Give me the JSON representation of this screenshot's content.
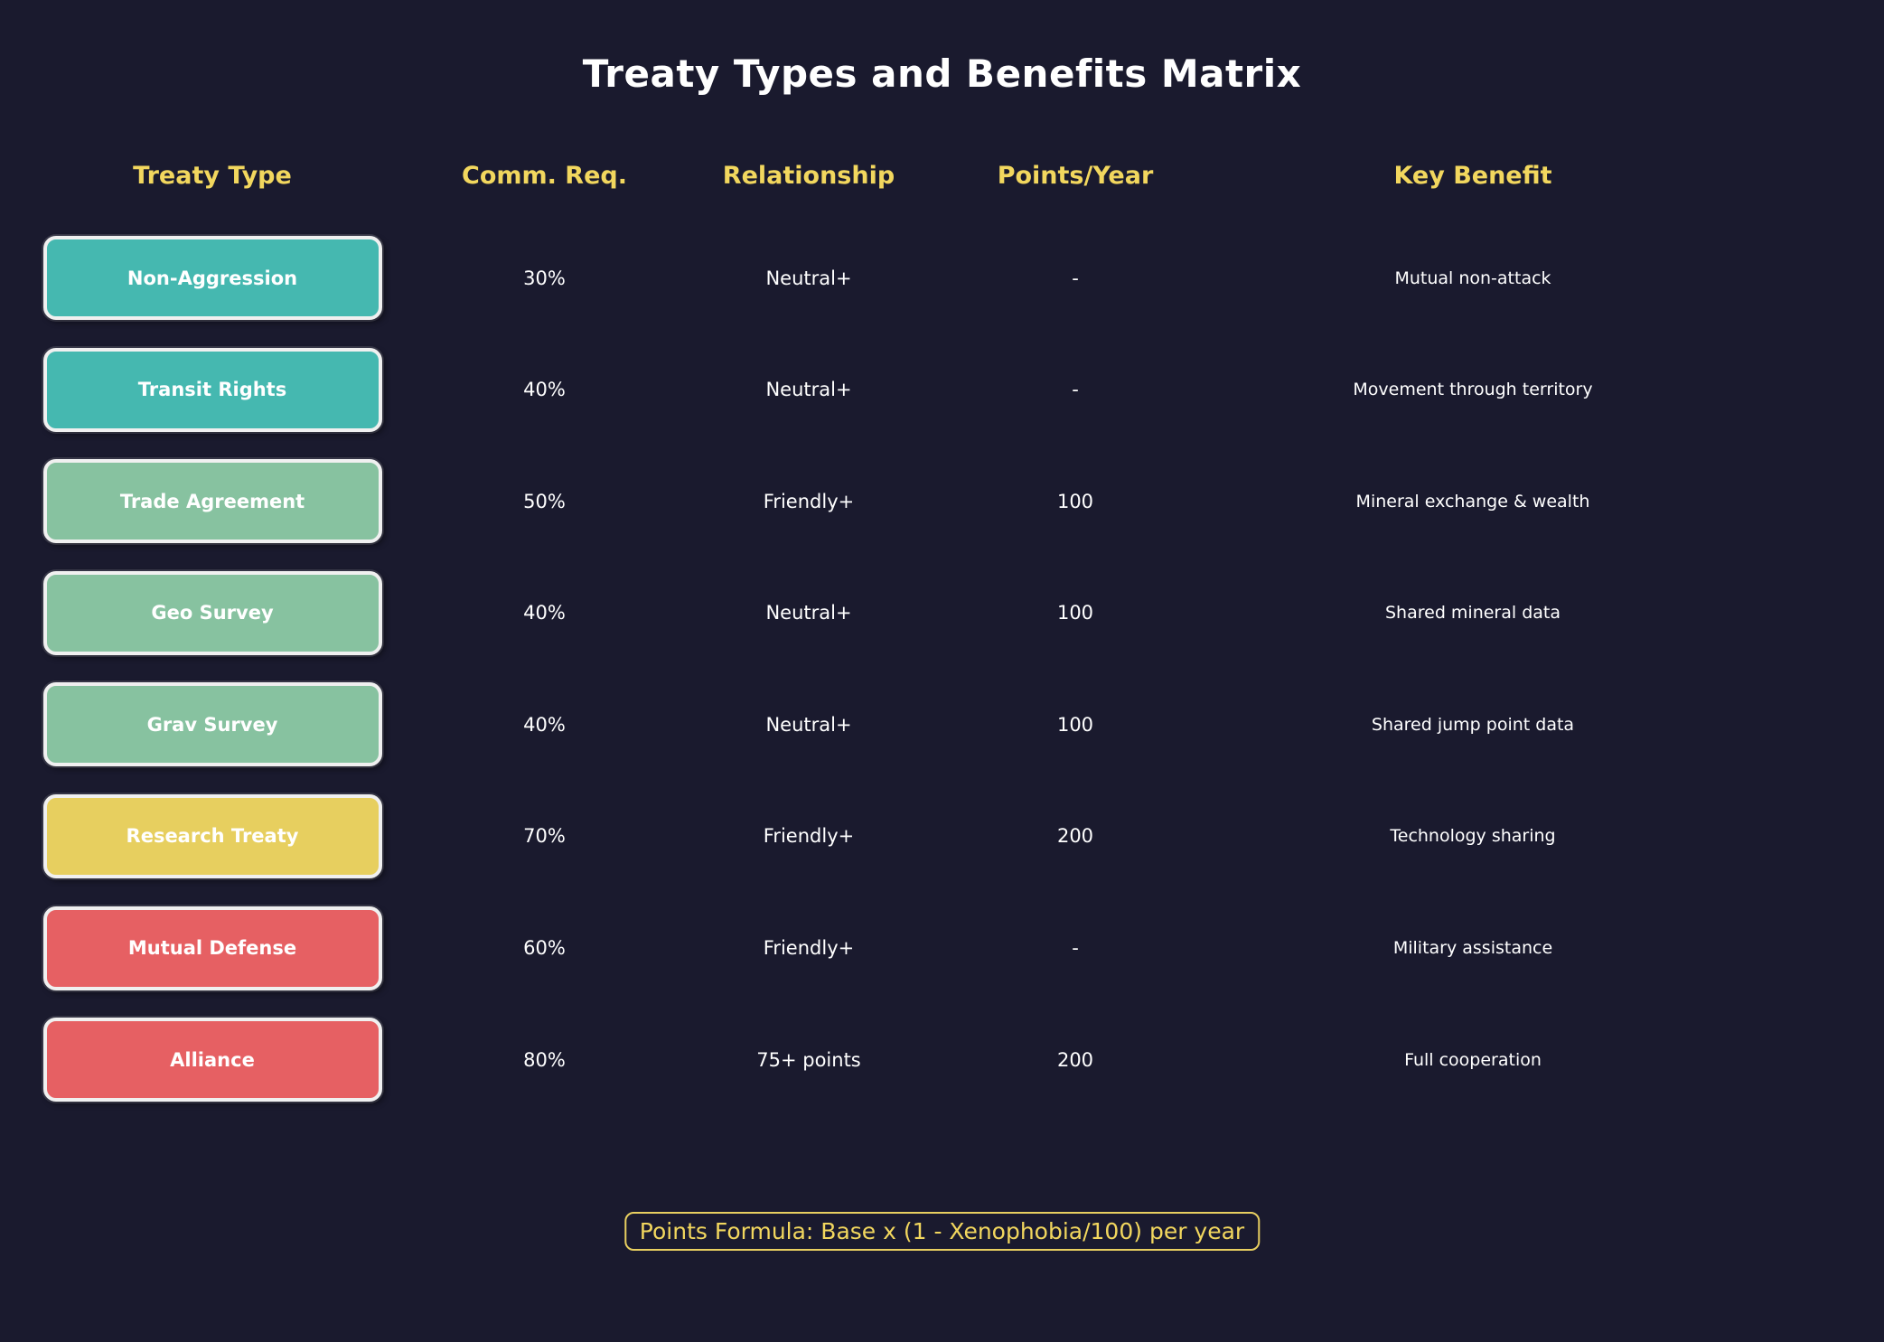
{
  "colors": {
    "background": "#1a1a2e",
    "header_text": "#f2d75e",
    "footer_border": "#e8cf60",
    "box_border": "#f0f0f0",
    "teal": "#45b8b0",
    "green": "#87c2a0",
    "yellow": "#e7cf5f",
    "red": "#e66063"
  },
  "chart_data": {
    "type": "table",
    "title": "Treaty Types and Benefits Matrix",
    "columns": [
      "Treaty Type",
      "Comm. Req.",
      "Relationship",
      "Points/Year",
      "Key Benefit"
    ],
    "rows": [
      {
        "treaty_type": "Non-Aggression",
        "color": "#45b8b0",
        "comm_req": "30%",
        "relationship": "Neutral+",
        "points_per_year": "-",
        "key_benefit": "Mutual non-attack"
      },
      {
        "treaty_type": "Transit Rights",
        "color": "#45b8b0",
        "comm_req": "40%",
        "relationship": "Neutral+",
        "points_per_year": "-",
        "key_benefit": "Movement through territory"
      },
      {
        "treaty_type": "Trade Agreement",
        "color": "#87c2a0",
        "comm_req": "50%",
        "relationship": "Friendly+",
        "points_per_year": "100",
        "key_benefit": "Mineral exchange & wealth"
      },
      {
        "treaty_type": "Geo Survey",
        "color": "#87c2a0",
        "comm_req": "40%",
        "relationship": "Neutral+",
        "points_per_year": "100",
        "key_benefit": "Shared mineral data"
      },
      {
        "treaty_type": "Grav Survey",
        "color": "#87c2a0",
        "comm_req": "40%",
        "relationship": "Neutral+",
        "points_per_year": "100",
        "key_benefit": "Shared jump point data"
      },
      {
        "treaty_type": "Research Treaty",
        "color": "#e7cf5f",
        "comm_req": "70%",
        "relationship": "Friendly+",
        "points_per_year": "200",
        "key_benefit": "Technology sharing"
      },
      {
        "treaty_type": "Mutual Defense",
        "color": "#e66063",
        "comm_req": "60%",
        "relationship": "Friendly+",
        "points_per_year": "-",
        "key_benefit": "Military assistance"
      },
      {
        "treaty_type": "Alliance",
        "color": "#e66063",
        "comm_req": "80%",
        "relationship": "75+ points",
        "points_per_year": "200",
        "key_benefit": "Full cooperation"
      }
    ],
    "footnote": "Points Formula: Base x (1 - Xenophobia/100) per year"
  }
}
